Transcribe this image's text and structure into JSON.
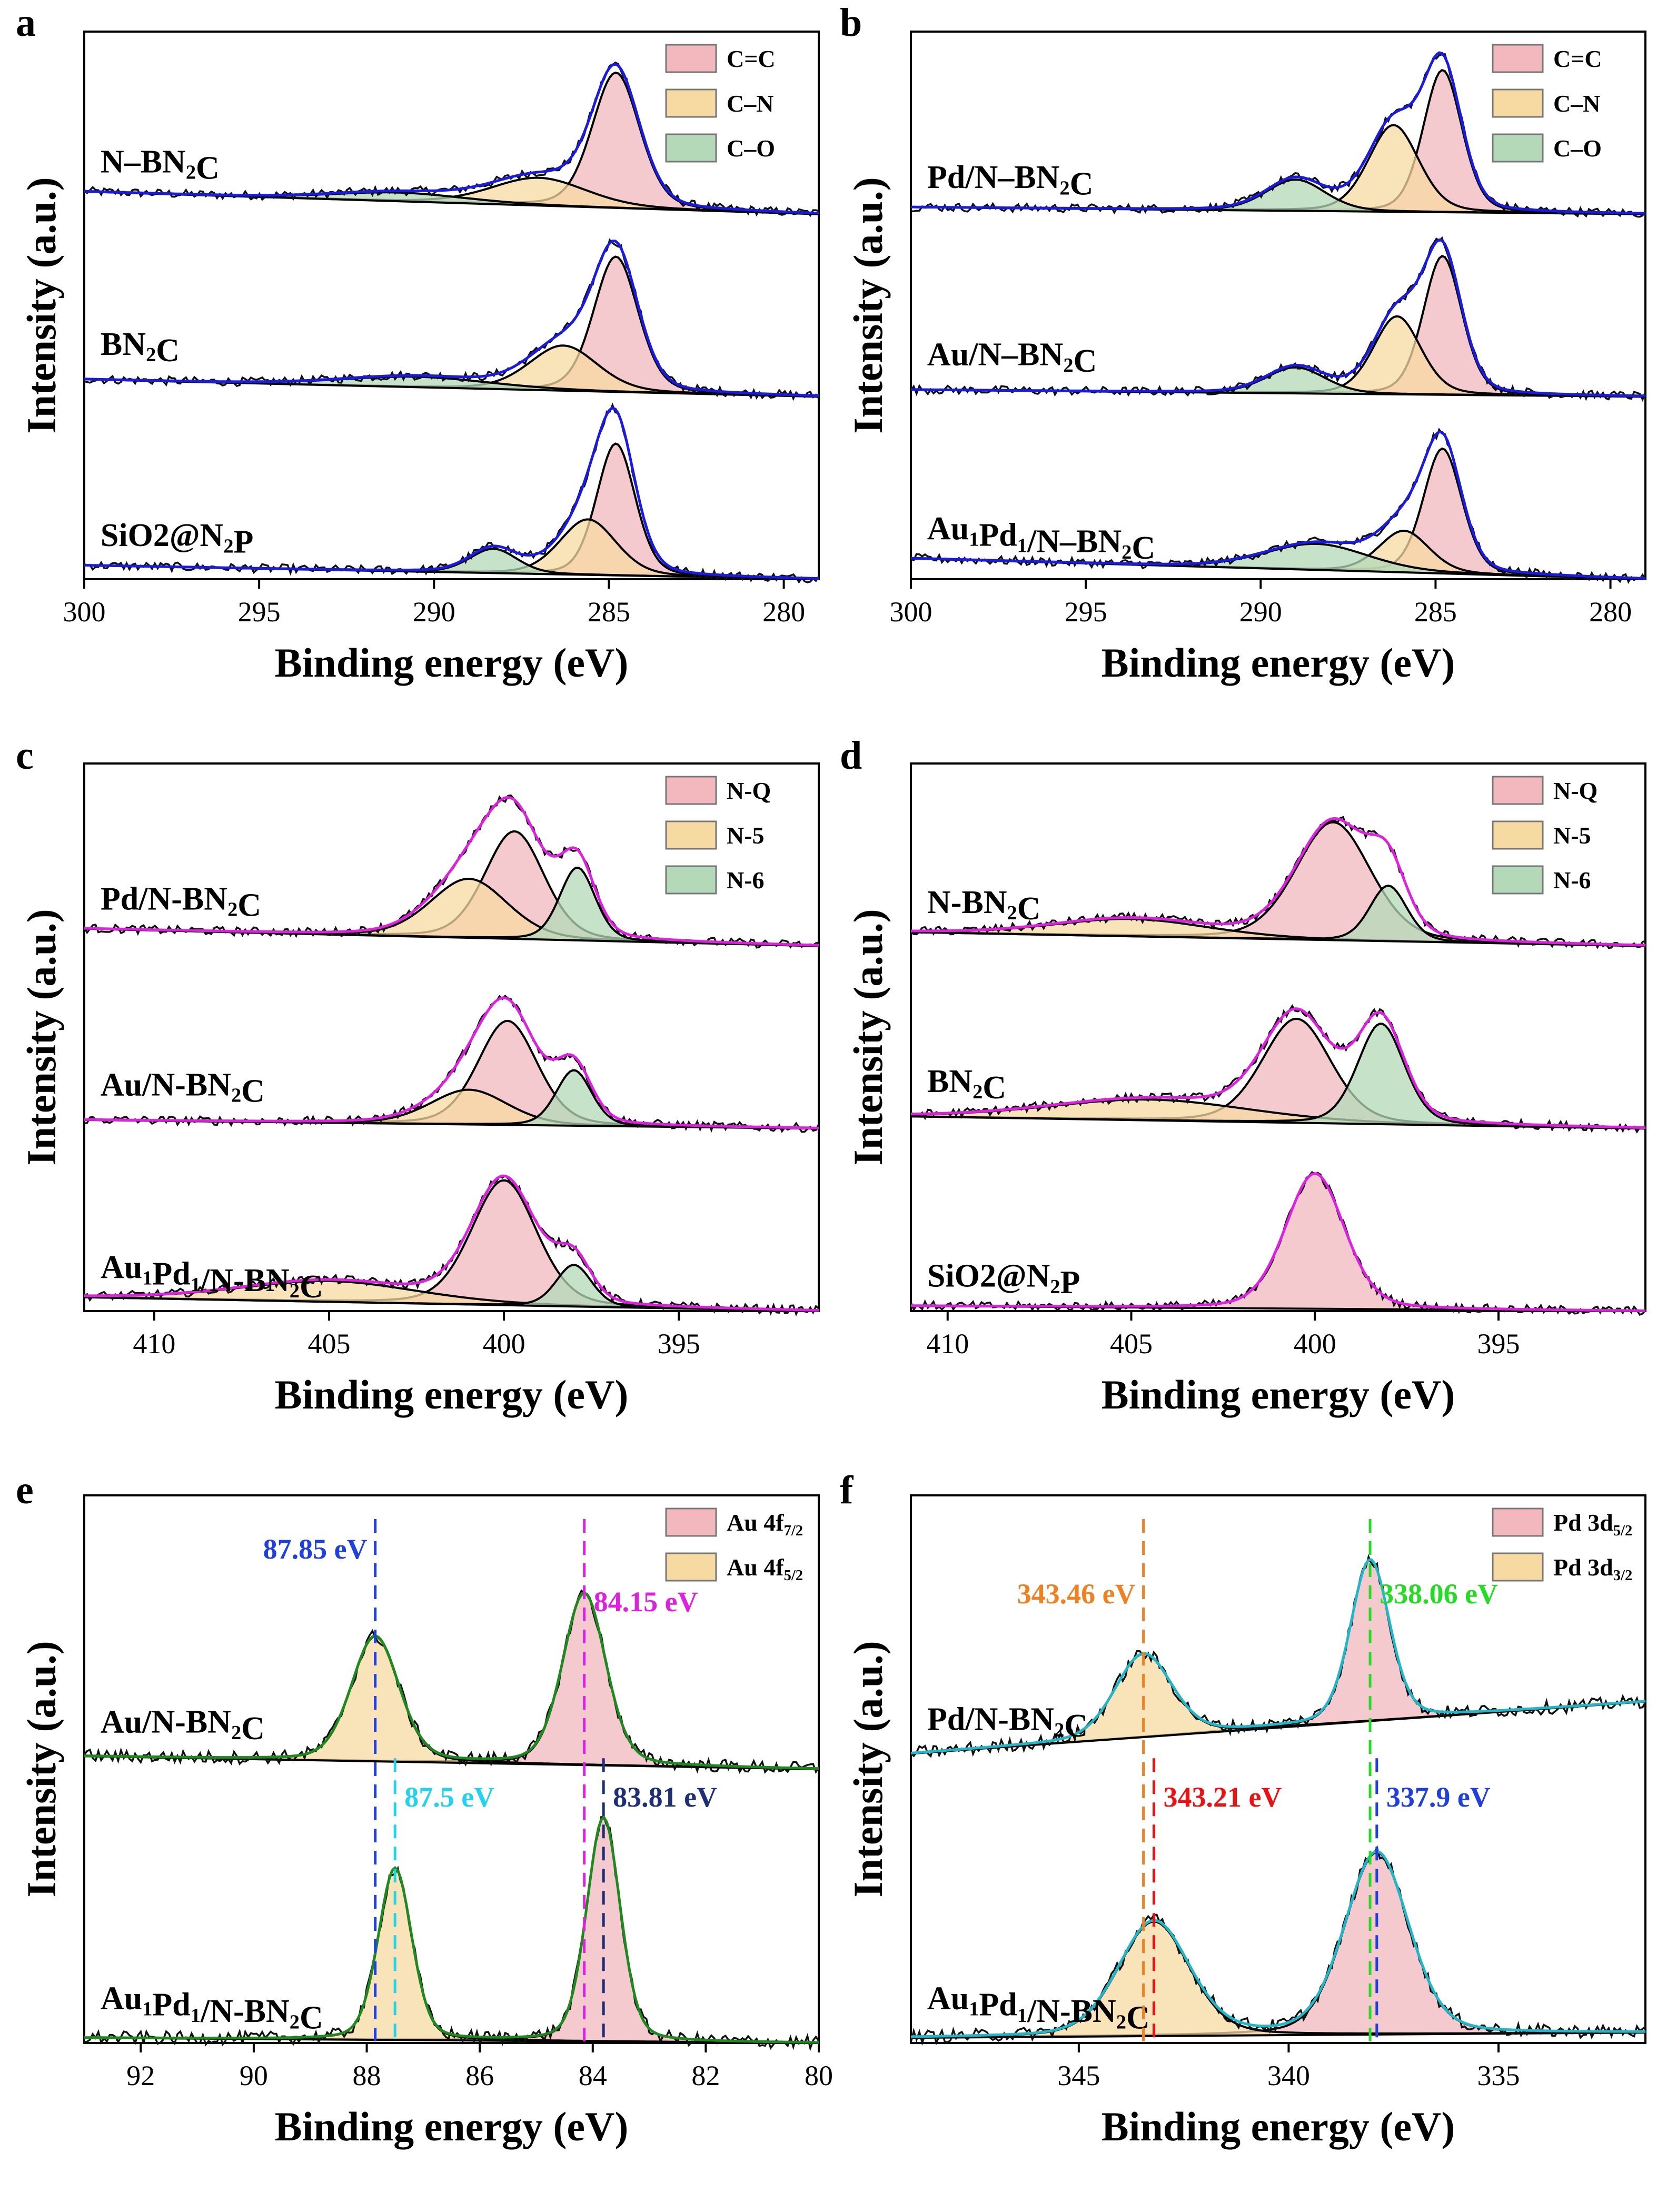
{
  "figure": {
    "axis_xlabel": "Binding energy (eV)",
    "axis_ylabel": "Intensity (a.u.)"
  },
  "chart_data": [
    {
      "id": "a",
      "panel_label": "a",
      "type": "line",
      "subtype": "xps_c1s_deconvolution",
      "xlabel": "Binding energy (eV)",
      "ylabel": "Intensity (a.u.)",
      "xlim": [
        300,
        279
      ],
      "xticks": [
        300,
        295,
        290,
        285,
        280
      ],
      "legend": {
        "position": "top-right",
        "entries": [
          {
            "label": "C=C",
            "color": "#f2b8bd"
          },
          {
            "label": "C–N",
            "color": "#f7d9a2"
          },
          {
            "label": "C–O",
            "color": "#b3d9b8"
          }
        ]
      },
      "envelope_color": "#1a1ae6",
      "spectra": [
        {
          "label": "N–BN",
          "sub": "2",
          "suffix": "C",
          "baseline": [
            0.13,
            0.0
          ],
          "peaks": [
            {
              "component": "C=C",
              "center": 284.8,
              "height": 0.78,
              "fwhm": 1.6
            },
            {
              "component": "C–N",
              "center": 287.0,
              "height": 0.16,
              "fwhm": 3.2
            },
            {
              "component": "C–O",
              "center": 291.0,
              "height": 0.05,
              "fwhm": 4.5
            }
          ]
        },
        {
          "label": "BN",
          "sub": "2",
          "suffix": "C",
          "baseline": [
            0.1,
            0.0
          ],
          "peaks": [
            {
              "component": "C=C",
              "center": 284.8,
              "height": 0.78,
              "fwhm": 1.5
            },
            {
              "component": "C–N",
              "center": 286.3,
              "height": 0.26,
              "fwhm": 2.3
            },
            {
              "component": "C–O",
              "center": 290.5,
              "height": 0.06,
              "fwhm": 5.0
            }
          ]
        },
        {
          "label": "SiO2@N",
          "sub": "2",
          "suffix": "P",
          "baseline": [
            0.08,
            0.0
          ],
          "peaks": [
            {
              "component": "C=C",
              "center": 284.8,
              "height": 0.76,
              "fwhm": 1.3
            },
            {
              "component": "C–N",
              "center": 285.6,
              "height": 0.32,
              "fwhm": 1.9
            },
            {
              "component": "C–O",
              "center": 288.3,
              "height": 0.14,
              "fwhm": 1.6
            }
          ]
        }
      ]
    },
    {
      "id": "b",
      "panel_label": "b",
      "type": "line",
      "subtype": "xps_c1s_deconvolution",
      "xlabel": "Binding energy (eV)",
      "ylabel": "Intensity (a.u.)",
      "xlim": [
        300,
        279
      ],
      "xticks": [
        300,
        295,
        290,
        285,
        280
      ],
      "legend": {
        "position": "top-right",
        "entries": [
          {
            "label": "C=C",
            "color": "#f2b8bd"
          },
          {
            "label": "C–N",
            "color": "#f7d9a2"
          },
          {
            "label": "C–O",
            "color": "#b3d9b8"
          }
        ]
      },
      "envelope_color": "#1a1ae6",
      "spectra": [
        {
          "label": "Pd/N–BN",
          "sub": "2",
          "suffix": "C",
          "baseline": [
            0.04,
            0.0
          ],
          "peaks": [
            {
              "component": "C=C",
              "center": 284.8,
              "height": 0.82,
              "fwhm": 1.3
            },
            {
              "component": "C–N",
              "center": 286.2,
              "height": 0.5,
              "fwhm": 1.7
            },
            {
              "component": "C–O",
              "center": 289.0,
              "height": 0.18,
              "fwhm": 2.0
            }
          ]
        },
        {
          "label": "Au/N–BN",
          "sub": "2",
          "suffix": "C",
          "baseline": [
            0.04,
            0.0
          ],
          "peaks": [
            {
              "component": "C=C",
              "center": 284.8,
              "height": 0.8,
              "fwhm": 1.3
            },
            {
              "component": "C–N",
              "center": 286.1,
              "height": 0.45,
              "fwhm": 1.6
            },
            {
              "component": "C–O",
              "center": 289.0,
              "height": 0.15,
              "fwhm": 2.0
            }
          ]
        },
        {
          "label": "Au",
          "sub": "1",
          "label2": "Pd",
          "sub2": "1",
          "label3": "/N–BN",
          "sub3": "2",
          "suffix": "C",
          "baseline": [
            0.12,
            0.0
          ],
          "peaks": [
            {
              "component": "C=C",
              "center": 284.8,
              "height": 0.72,
              "fwhm": 1.3
            },
            {
              "component": "C–N",
              "center": 285.9,
              "height": 0.24,
              "fwhm": 1.7
            },
            {
              "component": "C–O",
              "center": 288.4,
              "height": 0.15,
              "fwhm": 3.5
            }
          ]
        }
      ]
    },
    {
      "id": "c",
      "panel_label": "c",
      "type": "line",
      "subtype": "xps_n1s_deconvolution",
      "xlabel": "Binding energy (eV)",
      "ylabel": "Intensity (a.u.)",
      "xlim": [
        412,
        391
      ],
      "xticks": [
        410,
        405,
        400,
        395
      ],
      "legend": {
        "position": "top-right",
        "entries": [
          {
            "label": "N-Q",
            "color": "#f2b8bd"
          },
          {
            "label": "N-5",
            "color": "#f7d9a2"
          },
          {
            "label": "N-6",
            "color": "#b3d9b8"
          }
        ]
      },
      "envelope_color": "#e020e0",
      "spectra": [
        {
          "label": "Pd/N-BN",
          "sub": "2",
          "suffix": "C",
          "baseline": [
            0.1,
            0.0
          ],
          "peaks": [
            {
              "component": "N-Q",
              "center": 399.7,
              "height": 0.62,
              "fwhm": 2.0
            },
            {
              "component": "N-5",
              "center": 401.0,
              "height": 0.34,
              "fwhm": 2.6
            },
            {
              "component": "N-6",
              "center": 397.9,
              "height": 0.42,
              "fwhm": 1.2
            }
          ]
        },
        {
          "label": "Au/N-BN",
          "sub": "2",
          "suffix": "C",
          "baseline": [
            0.05,
            0.0
          ],
          "peaks": [
            {
              "component": "N-Q",
              "center": 399.9,
              "height": 0.6,
              "fwhm": 2.0
            },
            {
              "component": "N-5",
              "center": 401.0,
              "height": 0.2,
              "fwhm": 2.6
            },
            {
              "component": "N-6",
              "center": 398.0,
              "height": 0.32,
              "fwhm": 1.2
            }
          ]
        },
        {
          "label": "Au",
          "sub": "1",
          "label2": "Pd",
          "sub2": "1",
          "label3": "/N-BN",
          "sub3": "2",
          "suffix": "C",
          "baseline": [
            0.08,
            0.0
          ],
          "peaks": [
            {
              "component": "N-Q",
              "center": 400.0,
              "height": 0.72,
              "fwhm": 2.2
            },
            {
              "component": "N-5",
              "center": 405.0,
              "height": 0.12,
              "fwhm": 6.0
            },
            {
              "component": "N-6",
              "center": 398.0,
              "height": 0.24,
              "fwhm": 1.2
            }
          ]
        }
      ]
    },
    {
      "id": "d",
      "panel_label": "d",
      "type": "line",
      "subtype": "xps_n1s_deconvolution",
      "xlabel": "Binding energy (eV)",
      "ylabel": "Intensity (a.u.)",
      "xlim": [
        411,
        391
      ],
      "xticks": [
        410,
        405,
        400,
        395
      ],
      "legend": {
        "position": "top-right",
        "entries": [
          {
            "label": "N-Q",
            "color": "#f2b8bd"
          },
          {
            "label": "N-5",
            "color": "#f7d9a2"
          },
          {
            "label": "N-6",
            "color": "#b3d9b8"
          }
        ]
      },
      "envelope_color": "#e020e0",
      "spectra": [
        {
          "label": "N-BN",
          "sub": "2",
          "suffix": "C",
          "baseline": [
            0.08,
            0.0
          ],
          "peaks": [
            {
              "component": "N-Q",
              "center": 399.5,
              "height": 0.68,
              "fwhm": 2.4
            },
            {
              "component": "N-5",
              "center": 405.0,
              "height": 0.1,
              "fwhm": 5.0
            },
            {
              "component": "N-6",
              "center": 398.0,
              "height": 0.32,
              "fwhm": 1.2
            }
          ]
        },
        {
          "label": "BN",
          "sub": "2",
          "suffix": "C",
          "baseline": [
            0.07,
            0.0
          ],
          "peaks": [
            {
              "component": "N-Q",
              "center": 400.5,
              "height": 0.6,
              "fwhm": 2.2
            },
            {
              "component": "N-5",
              "center": 404.5,
              "height": 0.12,
              "fwhm": 6.5
            },
            {
              "component": "N-6",
              "center": 398.2,
              "height": 0.58,
              "fwhm": 1.5
            }
          ]
        },
        {
          "label": "SiO2@N",
          "sub": "2",
          "suffix": "P",
          "baseline": [
            0.03,
            0.0
          ],
          "peaks": [
            {
              "component": "N-Q",
              "center": 400.0,
              "height": 0.78,
              "fwhm": 1.9
            }
          ]
        }
      ]
    },
    {
      "id": "e",
      "panel_label": "e",
      "type": "line",
      "subtype": "xps_au4f_deconvolution",
      "xlabel": "Binding energy (eV)",
      "ylabel": "Intensity (a.u.)",
      "xlim": [
        93,
        80
      ],
      "xticks": [
        92,
        90,
        88,
        86,
        84,
        82,
        80
      ],
      "legend": {
        "position": "top-right",
        "entries": [
          {
            "label": "Au 4f",
            "sub": "7/2",
            "color": "#f2b8bd"
          },
          {
            "label": "Au 4f",
            "sub": "5/2",
            "color": "#f7d9a2"
          }
        ]
      },
      "envelope_color": "#1e8a1e",
      "spectra": [
        {
          "label": "Au/N-BN",
          "sub": "2",
          "suffix": "C",
          "baseline": [
            0.05,
            0.0
          ],
          "peaks": [
            {
              "component": "Au 4f7/2",
              "center": 84.15,
              "height": 0.66,
              "fwhm": 0.9
            },
            {
              "component": "Au 4f5/2",
              "center": 87.85,
              "height": 0.48,
              "fwhm": 1.0
            }
          ]
        },
        {
          "label": "Au",
          "sub": "1",
          "label2": "Pd",
          "sub2": "1",
          "label3": "/N-BN",
          "sub3": "2",
          "suffix": "C",
          "baseline": [
            0.02,
            0.0
          ],
          "peaks": [
            {
              "component": "Au 4f7/2",
              "center": 83.81,
              "height": 0.86,
              "fwhm": 0.7
            },
            {
              "component": "Au 4f5/2",
              "center": 87.5,
              "height": 0.66,
              "fwhm": 0.7
            }
          ]
        }
      ],
      "reference_lines": [
        {
          "x": 87.85,
          "label": "87.85 eV",
          "color": "#1f3fe0",
          "span": "full"
        },
        {
          "x": 84.15,
          "label": "84.15 eV",
          "color": "#e020e0",
          "span": "full"
        },
        {
          "x": 87.5,
          "label": "87.5 eV",
          "color": "#22d3ee",
          "span": "lower"
        },
        {
          "x": 83.81,
          "label": "83.81 eV",
          "color": "#1e2f7a",
          "span": "lower"
        }
      ]
    },
    {
      "id": "f",
      "panel_label": "f",
      "type": "line",
      "subtype": "xps_pd3d_deconvolution",
      "xlabel": "Binding energy (eV)",
      "ylabel": "Intensity (a.u.)",
      "xlim": [
        349,
        331.5
      ],
      "xticks": [
        345,
        340,
        335
      ],
      "legend": {
        "position": "top-right",
        "entries": [
          {
            "label": "Pd 3d",
            "sub": "5/2",
            "color": "#f2b8bd"
          },
          {
            "label": "Pd 3d",
            "sub": "3/2",
            "color": "#f7d9a2"
          }
        ]
      },
      "envelope_color": "#20b8c8",
      "spectra": [
        {
          "label": "Pd/N-BN",
          "sub": "2",
          "suffix": "C",
          "baseline": [
            0.06,
            0.26
          ],
          "peaks": [
            {
              "component": "Pd 3d5/2",
              "center": 338.06,
              "height": 0.62,
              "fwhm": 1.1
            },
            {
              "component": "Pd 3d3/2",
              "center": 343.46,
              "height": 0.32,
              "fwhm": 1.6
            }
          ]
        },
        {
          "label": "Au",
          "sub": "1",
          "label2": "Pd",
          "sub2": "1",
          "label3": "/N-BN",
          "sub3": "2",
          "suffix": "C",
          "baseline": [
            0.02,
            0.04
          ],
          "peaks": [
            {
              "component": "Pd 3d5/2",
              "center": 337.9,
              "height": 0.7,
              "fwhm": 1.8
            },
            {
              "component": "Pd 3d3/2",
              "center": 343.21,
              "height": 0.44,
              "fwhm": 2.0
            }
          ]
        }
      ],
      "reference_lines": [
        {
          "x": 343.46,
          "label": "343.46 eV",
          "color": "#f08020",
          "span": "full"
        },
        {
          "x": 338.06,
          "label": "338.06 eV",
          "color": "#22dd22",
          "span": "full"
        },
        {
          "x": 343.21,
          "label": "343.21 eV",
          "color": "#ee1111",
          "span": "lower"
        },
        {
          "x": 337.9,
          "label": "337.9 eV",
          "color": "#1f3fe0",
          "span": "lower"
        }
      ]
    }
  ]
}
